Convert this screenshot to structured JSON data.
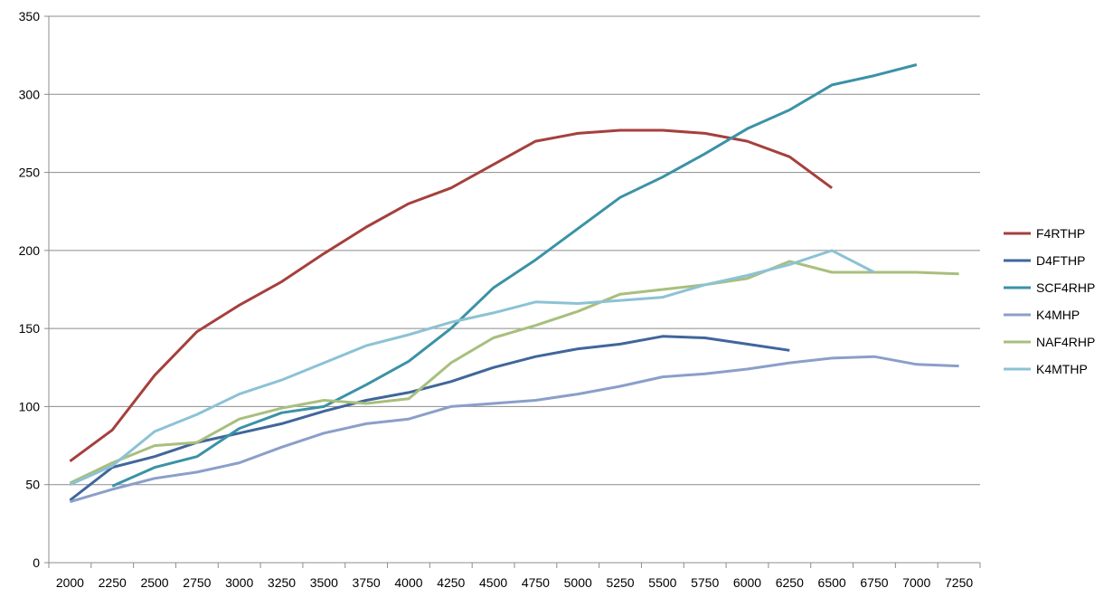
{
  "chart_data": {
    "type": "line",
    "title": "",
    "xlabel": "",
    "ylabel": "",
    "categories": [
      "2000",
      "2250",
      "2500",
      "2750",
      "3000",
      "3250",
      "3500",
      "3750",
      "4000",
      "4250",
      "4500",
      "4750",
      "5000",
      "5250",
      "5500",
      "5750",
      "6000",
      "6250",
      "6500",
      "6750",
      "7000",
      "7250"
    ],
    "ylim": [
      0,
      350
    ],
    "yticks": [
      "0",
      "50",
      "100",
      "150",
      "200",
      "250",
      "300",
      "350"
    ],
    "grid": true,
    "legend_position": "right",
    "series": [
      {
        "name": "F4RTHP",
        "color": "#A5403D",
        "values": [
          65,
          85,
          120,
          148,
          165,
          180,
          198,
          215,
          230,
          240,
          255,
          270,
          275,
          277,
          277,
          275,
          270,
          260,
          240,
          null,
          null,
          null
        ]
      },
      {
        "name": "D4FTHP",
        "color": "#40669B",
        "values": [
          40,
          61,
          68,
          77,
          83,
          89,
          97,
          104,
          109,
          116,
          125,
          132,
          137,
          140,
          145,
          144,
          140,
          136,
          null,
          null,
          null,
          null
        ]
      },
      {
        "name": "SCF4RHP",
        "color": "#3B92A6",
        "values": [
          null,
          49,
          61,
          68,
          86,
          96,
          100,
          114,
          129,
          150,
          176,
          194,
          214,
          234,
          247,
          262,
          278,
          290,
          306,
          312,
          319,
          null
        ]
      },
      {
        "name": "K4MHP",
        "color": "#8A9FC9",
        "values": [
          39,
          47,
          54,
          58,
          64,
          74,
          83,
          89,
          92,
          100,
          102,
          104,
          108,
          113,
          119,
          121,
          124,
          128,
          131,
          132,
          127,
          126
        ]
      },
      {
        "name": "NAF4RHP",
        "color": "#A8BF7E",
        "values": [
          51,
          64,
          75,
          77,
          92,
          99,
          104,
          102,
          105,
          128,
          144,
          152,
          161,
          172,
          175,
          178,
          182,
          193,
          186,
          186,
          186,
          185
        ]
      },
      {
        "name": "K4MTHP",
        "color": "#8CC2D5",
        "values": [
          50,
          62,
          84,
          95,
          108,
          117,
          128,
          139,
          146,
          154,
          160,
          167,
          166,
          168,
          170,
          178,
          184,
          191,
          200,
          186,
          null,
          null
        ]
      }
    ]
  }
}
